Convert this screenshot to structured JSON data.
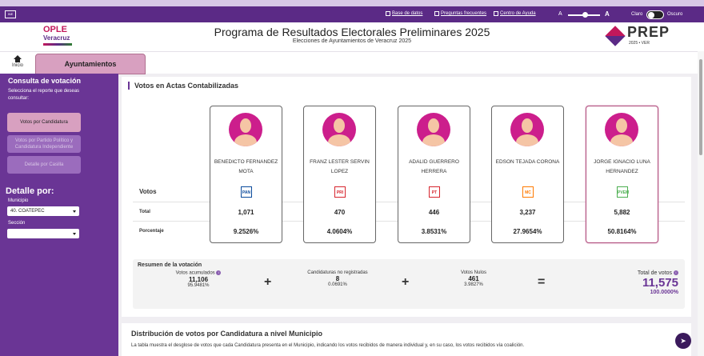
{
  "utility": {
    "links": [
      "Base de datos",
      "Preguntas frecuentes",
      "Centro de Ayuda"
    ],
    "font_small": "A",
    "font_large": "A",
    "theme_light": "Claro",
    "theme_dark": "Oscuro"
  },
  "header": {
    "logo_top": "OPLE",
    "logo_bottom": "Veracruz",
    "title": "Programa de Resultados Electorales Preliminares 2025",
    "subtitle": "Elecciones de Ayuntamientos de Veracruz 2025",
    "prep_word": "PREP",
    "prep_year": "2025 • VER"
  },
  "nav": {
    "home": "Inicio",
    "tab": "Ayuntamientos"
  },
  "sidebar": {
    "title": "Consulta de votación",
    "prompt": "Selecciona el reporte que deseas consultar:",
    "buttons": [
      "Votos por Candidatura",
      "Votos por Partido Político y Candidatura Independiente",
      "Detalle por Casilla"
    ],
    "detail_title": "Detalle por:",
    "municipio_label": "Municipio",
    "municipio_value": "40. COATEPEC",
    "seccion_label": "Sección",
    "seccion_value": ""
  },
  "votes": {
    "title": "Votos en Actas Contabilizadas",
    "row_votos": "Votos",
    "row_total": "Total",
    "row_pct": "Porcentaje",
    "candidates": [
      {
        "name": "BENEDICTO FERNANDEZ MOTA",
        "party": "PAN",
        "party_color": "#0a4a9c",
        "total": "1,071",
        "pct": "9.2526%",
        "winner": false
      },
      {
        "name": "FRANZ LESTER SERVIN LOPEZ",
        "party": "PRI",
        "party_color": "#d7262e",
        "total": "470",
        "pct": "4.0604%",
        "winner": false
      },
      {
        "name": "ADALID GUERRERO HERRERA",
        "party": "PT",
        "party_color": "#d7262e",
        "total": "446",
        "pct": "3.8531%",
        "winner": false
      },
      {
        "name": "EDSON TEJADA CORONA",
        "party": "MC",
        "party_color": "#ff7a00",
        "total": "3,237",
        "pct": "27.9654%",
        "winner": false
      },
      {
        "name": "JORGE IGNACIO LUNA HERNANDEZ",
        "party": "PVEM",
        "party_color": "#4caf50",
        "total": "5,882",
        "pct": "50.8164%",
        "winner": true
      }
    ]
  },
  "summary": {
    "title": "Resumen de la votación",
    "acumulados_label": "Votos acumulados",
    "acumulados_value": "11,106",
    "acumulados_pct": "95.9481%",
    "no_reg_label": "Candidaturas no registradas",
    "no_reg_value": "8",
    "no_reg_pct": "0.0691%",
    "nulos_label": "Votos Nulos",
    "nulos_value": "461",
    "nulos_pct": "3.9827%",
    "total_label": "Total de votos",
    "total_value": "11,575",
    "total_pct": "100.0000%"
  },
  "distribution": {
    "title": "Distribución de votos por Candidatura a nivel Municipio",
    "text": "La tabla muestra el desglose de votos que cada Candidatura presenta en el Municipio, indicando los votos recibidos de manera individual y, en su caso, los votos recibidos vía coalición."
  }
}
